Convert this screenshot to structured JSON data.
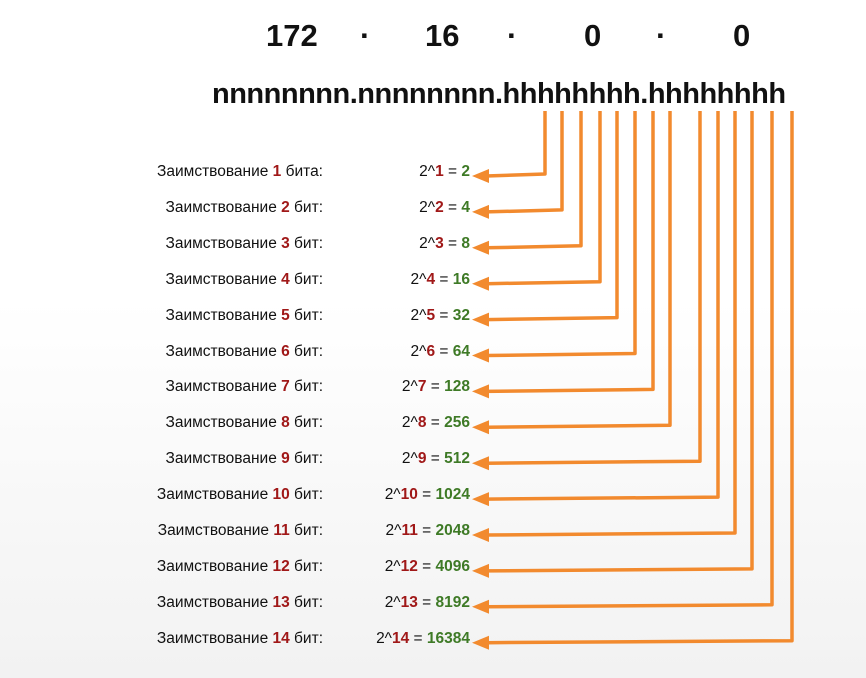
{
  "header": {
    "octets": [
      "172",
      "16",
      "0",
      "0"
    ],
    "separator": "·",
    "mask_text": "nnnnnnnn.nnnnnnnn.hhhhhhhh.hhhhhhhh"
  },
  "rows": [
    {
      "prefix": "Заимствование ",
      "bits": "1",
      "suffix": " бита:",
      "base": "2^",
      "exp": "1",
      "eq": " = ",
      "result": "2"
    },
    {
      "prefix": "Заимствование ",
      "bits": "2",
      "suffix": " бит:",
      "base": "2^",
      "exp": "2",
      "eq": " = ",
      "result": "4"
    },
    {
      "prefix": "Заимствование ",
      "bits": "3",
      "suffix": " бит:",
      "base": "2^",
      "exp": "3",
      "eq": " = ",
      "result": "8"
    },
    {
      "prefix": "Заимствование ",
      "bits": "4",
      "suffix": " бит:",
      "base": "2^",
      "exp": "4",
      "eq": " = ",
      "result": "16"
    },
    {
      "prefix": "Заимствование ",
      "bits": "5",
      "suffix": " бит:",
      "base": "2^",
      "exp": "5",
      "eq": " = ",
      "result": "32"
    },
    {
      "prefix": "Заимствование ",
      "bits": "6",
      "suffix": " бит:",
      "base": "2^",
      "exp": "6",
      "eq": " = ",
      "result": "64"
    },
    {
      "prefix": "Заимствование ",
      "bits": "7",
      "suffix": " бит:",
      "base": "2^",
      "exp": "7",
      "eq": " = ",
      "result": "128"
    },
    {
      "prefix": "Заимствование ",
      "bits": "8",
      "suffix": " бит:",
      "base": "2^",
      "exp": "8",
      "eq": " = ",
      "result": "256"
    },
    {
      "prefix": "Заимствование ",
      "bits": "9",
      "suffix": " бит:",
      "base": "2^",
      "exp": "9",
      "eq": " = ",
      "result": "512"
    },
    {
      "prefix": "Заимствование ",
      "bits": "10",
      "suffix": " бит:",
      "base": "2^",
      "exp": "10",
      "eq": " = ",
      "result": "1024"
    },
    {
      "prefix": "Заимствование ",
      "bits": "11",
      "suffix": " бит:",
      "base": "2^",
      "exp": "11",
      "eq": " = ",
      "result": "2048"
    },
    {
      "prefix": "Заимствование ",
      "bits": "12",
      "suffix": " бит:",
      "base": "2^",
      "exp": "12",
      "eq": " = ",
      "result": "4096"
    },
    {
      "prefix": "Заимствование ",
      "bits": "13",
      "suffix": " бит:",
      "base": "2^",
      "exp": "13",
      "eq": " = ",
      "result": "8192"
    },
    {
      "prefix": "Заимствование ",
      "bits": "14",
      "suffix": " бит:",
      "base": "2^",
      "exp": "14",
      "eq": " = ",
      "result": "16384"
    }
  ],
  "colors": {
    "accent": "#f28a2e",
    "highlight_red": "#a01818",
    "highlight_green": "#3e7a26"
  }
}
